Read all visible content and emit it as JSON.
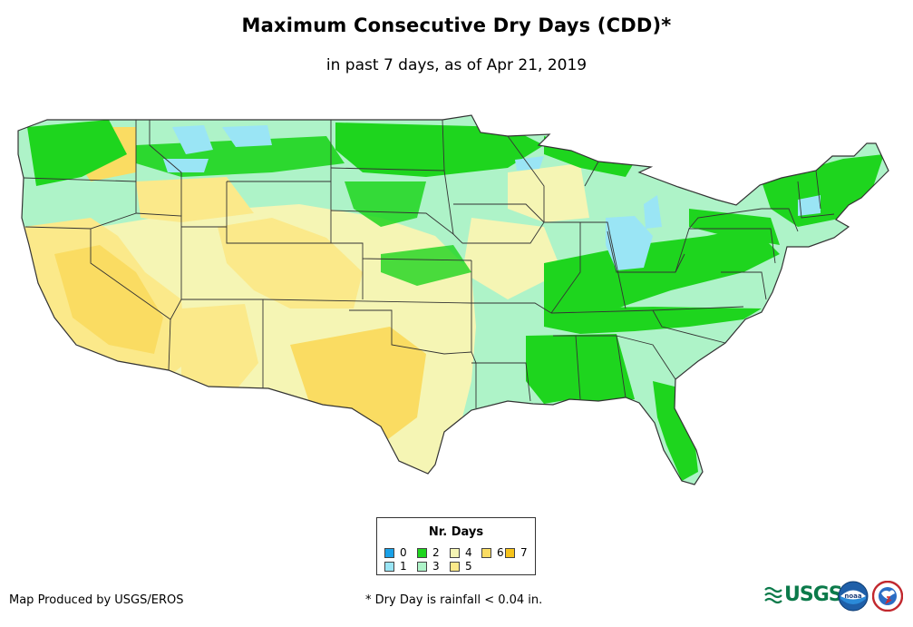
{
  "title": "Maximum Consecutive Dry Days (CDD)*",
  "subtitle": "in past 7 days, as of Apr 21, 2019",
  "legend": {
    "title": "Nr. Days",
    "items": [
      {
        "label": "0",
        "color": "#1aa1e8"
      },
      {
        "label": "1",
        "color": "#9ae5f5"
      },
      {
        "label": "2",
        "color": "#1ed51e"
      },
      {
        "label": "3",
        "color": "#aef3c8"
      },
      {
        "label": "4",
        "color": "#f5f5b4"
      },
      {
        "label": "5",
        "color": "#fbe98a"
      },
      {
        "label": "6",
        "color": "#fadc62"
      },
      {
        "label": "7",
        "color": "#f6c31a"
      }
    ]
  },
  "footer": {
    "credit": "Map Produced by USGS/EROS",
    "note": "* Dry Day is rainfall < 0.04 in."
  },
  "logos": {
    "usgs": "USGS",
    "noaa": "noaa",
    "nws": "NATIONAL WEATHER SERVICE"
  },
  "colors": {
    "usgs_green": "#0b7a4a",
    "border": "#333333"
  }
}
